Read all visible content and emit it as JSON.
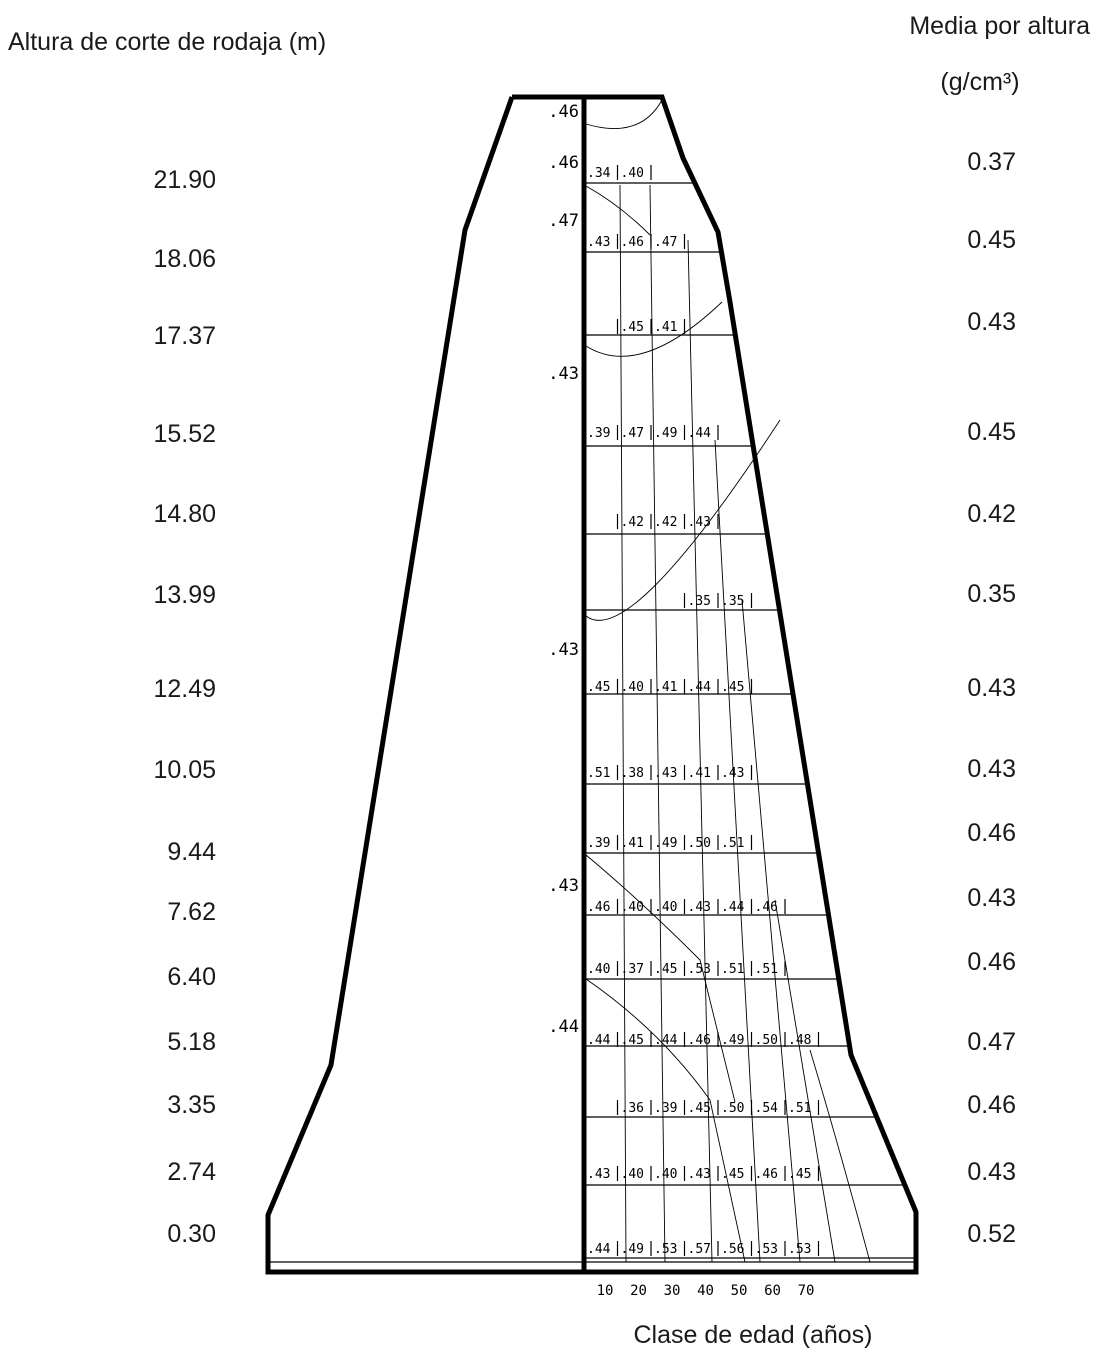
{
  "header": {
    "left_title": "Altura de corte de rodaja (m)",
    "right_title": "Media por altura",
    "right_unit": "(g/cm³)",
    "x_axis_title": "Clase de edad (años)"
  },
  "age_ticks": [
    "10",
    "20",
    "30",
    "40",
    "50",
    "60",
    "70"
  ],
  "pith_marks": [
    ".46",
    ".46",
    ".47",
    ".43",
    ".43",
    ".43",
    ".44"
  ],
  "rows": [
    {
      "height": "21.90",
      "mean": "0.37",
      "cells": [
        ".34",
        ".40"
      ]
    },
    {
      "height": "18.06",
      "mean": "0.45",
      "cells": [
        ".43",
        ".46",
        ".47"
      ]
    },
    {
      "height": "17.37",
      "mean": "0.43",
      "cells": [
        ".45",
        ".41"
      ]
    },
    {
      "height": "15.52",
      "mean": "0.45",
      "cells": [
        ".39",
        ".47",
        ".49",
        ".44"
      ]
    },
    {
      "height": "14.80",
      "mean": "0.42",
      "cells": [
        ".42",
        ".42",
        ".43"
      ]
    },
    {
      "height": "13.99",
      "mean": "0.35",
      "cells": [
        ".35",
        ".35"
      ]
    },
    {
      "height": "12.49",
      "mean": "0.43",
      "cells": [
        ".45",
        ".40",
        ".41",
        ".44",
        ".45"
      ]
    },
    {
      "height": "10.05",
      "mean": "0.43",
      "cells": [
        ".51",
        ".38",
        ".43",
        ".41",
        ".43"
      ]
    },
    {
      "height": "9.44",
      "mean": "0.46",
      "cells": [
        ".39",
        ".41",
        ".49",
        ".50",
        ".51"
      ]
    },
    {
      "height": "7.62",
      "mean": "0.43",
      "cells": [
        ".46",
        ".40",
        ".40",
        ".43",
        ".44",
        ".46"
      ]
    },
    {
      "height": "6.40",
      "mean": "0.46",
      "cells": [
        ".40",
        ".37",
        ".45",
        ".53",
        ".51",
        ".51"
      ]
    },
    {
      "height": "5.18",
      "mean": "0.47",
      "cells": [
        ".44",
        ".45",
        ".44",
        ".46",
        ".49",
        ".50",
        ".48"
      ]
    },
    {
      "height": "3.35",
      "mean": "0.46",
      "cells": [
        ".36",
        ".39",
        ".45",
        ".50",
        ".54",
        ".51"
      ]
    },
    {
      "height": "2.74",
      "mean": "0.43",
      "cells": [
        ".43",
        ".40",
        ".40",
        ".43",
        ".45",
        ".46",
        ".45"
      ]
    },
    {
      "height": "0.30",
      "mean": "0.52",
      "cells": [
        ".44",
        ".49",
        ".53",
        ".57",
        ".56",
        ".53",
        ".53"
      ]
    }
  ]
}
